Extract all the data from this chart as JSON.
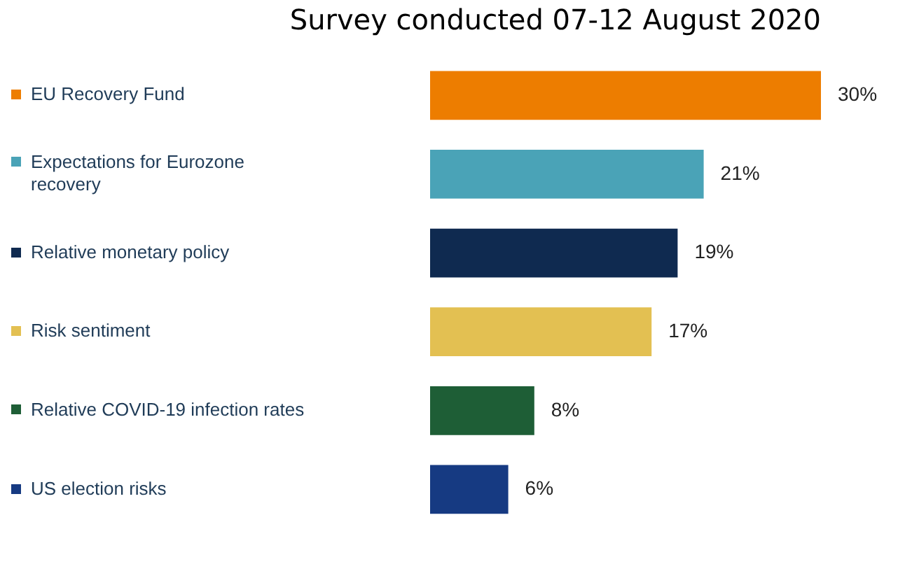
{
  "chart_data": {
    "type": "bar",
    "orientation": "horizontal",
    "title": "Survey conducted 07-12 August 2020",
    "categories": [
      "EU Recovery Fund",
      "Expectations for Eurozone recovery",
      "Relative monetary policy",
      "Risk sentiment",
      "Relative COVID-19 infection rates",
      "US election risks"
    ],
    "values": [
      30,
      21,
      19,
      17,
      8,
      6
    ],
    "colors": [
      "#ed7d00",
      "#4aa3b7",
      "#0f2a50",
      "#e3c052",
      "#1e5e36",
      "#163a82"
    ],
    "value_labels": [
      "30%",
      "21%",
      "19%",
      "17%",
      "8%",
      "6%"
    ],
    "grid": false,
    "legend": false
  }
}
